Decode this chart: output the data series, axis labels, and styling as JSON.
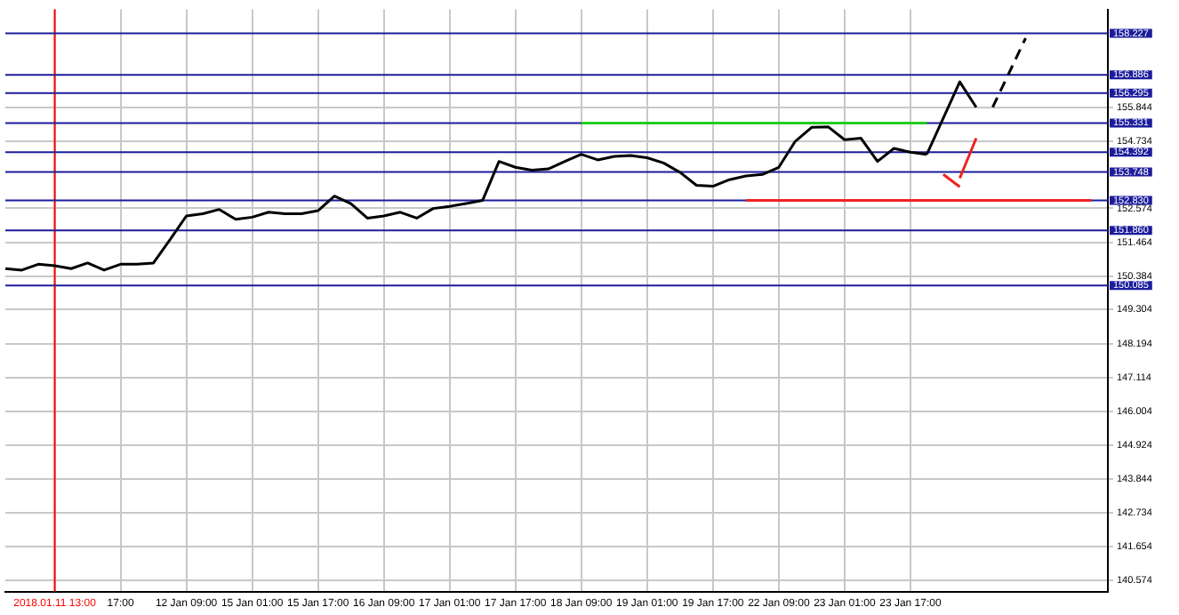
{
  "chart_data": {
    "type": "line",
    "categories": [
      null,
      null,
      null,
      "2018.01.11 13:00",
      null,
      null,
      null,
      "17:00",
      null,
      null,
      null,
      "12 Jan 09:00",
      null,
      null,
      null,
      "15 Jan 01:00",
      null,
      null,
      null,
      "15 Jan 17:00",
      null,
      null,
      null,
      "16 Jan 09:00",
      null,
      null,
      null,
      "17 Jan 01:00",
      null,
      null,
      null,
      "17 Jan 17:00",
      null,
      null,
      null,
      "18 Jan 09:00",
      null,
      null,
      null,
      "19 Jan 01:00",
      null,
      null,
      null,
      "19 Jan 17:00",
      null,
      null,
      null,
      "22 Jan 09:00",
      null,
      null,
      null,
      "23 Jan 01:00",
      null,
      null,
      null,
      "23 Jan 17:00",
      null,
      null,
      null,
      null,
      null,
      null,
      null,
      null,
      null,
      null,
      null,
      null
    ],
    "series": [
      {
        "color": "#000000",
        "values": [
          150.63,
          150.58,
          150.77,
          150.72,
          150.63,
          150.81,
          150.58,
          150.77,
          150.77,
          150.81,
          151.56,
          152.33,
          152.4,
          152.54,
          152.22,
          152.29,
          152.45,
          152.4,
          152.4,
          152.5,
          152.97,
          152.73,
          152.26,
          152.33,
          152.45,
          152.26,
          152.57,
          152.64,
          152.73,
          152.83,
          154.09,
          153.9,
          153.81,
          153.85,
          154.09,
          154.32,
          154.14,
          154.25,
          154.28,
          154.21,
          154.04,
          153.74,
          153.32,
          153.29,
          153.5,
          153.62,
          153.67,
          153.9,
          154.74,
          155.19,
          155.21,
          154.79,
          154.84,
          154.09,
          154.51,
          154.39,
          154.32,
          null,
          null,
          null,
          null,
          null,
          null,
          null,
          null,
          null,
          null,
          null
        ]
      },
      {
        "type": "line",
        "color": "#22cc22",
        "values": [
          null,
          null,
          null,
          null,
          null,
          null,
          null,
          null,
          null,
          null,
          null,
          null,
          null,
          null,
          null,
          null,
          null,
          null,
          null,
          null,
          null,
          null,
          null,
          null,
          null,
          null,
          null,
          null,
          null,
          null,
          null,
          null,
          null,
          null,
          null,
          155.331,
          155.331,
          155.331,
          155.331,
          155.331,
          155.331,
          155.331,
          155.331,
          155.331,
          155.331,
          155.331,
          155.331,
          155.331,
          155.331,
          155.331,
          155.331,
          155.331,
          155.331,
          155.331,
          155.331,
          155.331,
          155.331,
          null,
          null,
          null,
          null,
          null,
          null,
          null,
          null,
          null,
          null,
          null
        ]
      },
      {
        "type": "line",
        "color": "#ee2222",
        "values": [
          null,
          null,
          null,
          null,
          null,
          null,
          null,
          null,
          null,
          null,
          null,
          null,
          null,
          null,
          null,
          null,
          null,
          null,
          null,
          null,
          null,
          null,
          null,
          null,
          null,
          null,
          null,
          null,
          null,
          null,
          null,
          null,
          null,
          null,
          null,
          null,
          null,
          null,
          null,
          null,
          null,
          null,
          null,
          null,
          null,
          152.83,
          152.83,
          152.83,
          152.83,
          152.83,
          152.83,
          152.83,
          152.83,
          152.83,
          152.83,
          152.83,
          152.83,
          152.83,
          152.83,
          152.83,
          152.83,
          152.83,
          152.83,
          152.83,
          152.83,
          152.83,
          152.83,
          null
        ]
      },
      {
        "type": "line",
        "color": "#000000",
        "values": [
          null,
          null,
          null,
          null,
          null,
          null,
          null,
          null,
          null,
          null,
          null,
          null,
          null,
          null,
          null,
          null,
          null,
          null,
          null,
          null,
          null,
          null,
          null,
          null,
          null,
          null,
          null,
          null,
          null,
          null,
          null,
          null,
          null,
          null,
          null,
          null,
          null,
          null,
          null,
          null,
          null,
          null,
          null,
          null,
          null,
          null,
          null,
          null,
          null,
          null,
          null,
          null,
          null,
          null,
          null,
          null,
          154.32,
          null,
          156.66,
          155.84,
          null,
          null,
          null,
          null,
          null,
          null,
          null,
          null
        ]
      },
      {
        "type": "line",
        "color": "#000000",
        "line_style": "dashed",
        "values": [
          null,
          null,
          null,
          null,
          null,
          null,
          null,
          null,
          null,
          null,
          null,
          null,
          null,
          null,
          null,
          null,
          null,
          null,
          null,
          null,
          null,
          null,
          null,
          null,
          null,
          null,
          null,
          null,
          null,
          null,
          null,
          null,
          null,
          null,
          null,
          null,
          null,
          null,
          null,
          null,
          null,
          null,
          null,
          null,
          null,
          null,
          null,
          null,
          null,
          null,
          null,
          null,
          null,
          null,
          null,
          null,
          null,
          null,
          null,
          null,
          155.84,
          null,
          158.07,
          null,
          null,
          null,
          null,
          null
        ]
      },
      {
        "type": "line",
        "color": "#ee2222",
        "values": [
          null,
          null,
          null,
          null,
          null,
          null,
          null,
          null,
          null,
          null,
          null,
          null,
          null,
          null,
          null,
          null,
          null,
          null,
          null,
          null,
          null,
          null,
          null,
          null,
          null,
          null,
          null,
          null,
          null,
          null,
          null,
          null,
          null,
          null,
          null,
          null,
          null,
          null,
          null,
          null,
          null,
          null,
          null,
          null,
          null,
          null,
          null,
          null,
          null,
          null,
          null,
          null,
          null,
          null,
          null,
          null,
          null,
          153.67,
          153.27,
          null,
          null,
          null,
          null,
          null,
          null,
          null,
          null,
          null
        ]
      },
      {
        "type": "line",
        "color": "#ee2222",
        "values": [
          null,
          null,
          null,
          null,
          null,
          null,
          null,
          null,
          null,
          null,
          null,
          null,
          null,
          null,
          null,
          null,
          null,
          null,
          null,
          null,
          null,
          null,
          null,
          null,
          null,
          null,
          null,
          null,
          null,
          null,
          null,
          null,
          null,
          null,
          null,
          null,
          null,
          null,
          null,
          null,
          null,
          null,
          null,
          null,
          null,
          null,
          null,
          null,
          null,
          null,
          null,
          null,
          null,
          null,
          null,
          null,
          null,
          null,
          153.55,
          154.84,
          null,
          null,
          null,
          null,
          null,
          null,
          null,
          null
        ]
      }
    ],
    "ylim": [
      140.2,
      159.0
    ],
    "yticks": [
      155.844,
      154.734,
      152.574,
      151.464,
      150.384,
      149.304,
      148.194,
      147.114,
      146.004,
      144.924,
      143.844,
      142.734,
      141.654,
      140.574
    ],
    "ref_lines": [
      {
        "axis": "x",
        "value": "2018.01.11 13:00",
        "color": "#ff0000"
      },
      {
        "axis": "y",
        "value": 158.227,
        "label": "158.227",
        "color": "#1c1c9c"
      },
      {
        "axis": "y",
        "value": 156.886,
        "label": "156.886",
        "color": "#1c1c9c"
      },
      {
        "axis": "y",
        "value": 156.295,
        "label": "156.295",
        "color": "#1c1c9c"
      },
      {
        "axis": "y",
        "value": 155.331,
        "label": "155.331",
        "color": "#1c1c9c"
      },
      {
        "axis": "y",
        "value": 154.392,
        "label": "154.392",
        "color": "#1c1c9c"
      },
      {
        "axis": "y",
        "value": 153.748,
        "label": "153.748",
        "color": "#1c1c9c"
      },
      {
        "axis": "y",
        "value": 152.83,
        "label": "152.830",
        "color": "#1c1c9c"
      },
      {
        "axis": "y",
        "value": 151.86,
        "label": "151.860",
        "color": "#1c1c9c"
      },
      {
        "axis": "y",
        "value": 150.085,
        "label": "150.085",
        "color": "#1c1c9c"
      }
    ],
    "grid": true,
    "legend": false,
    "marker": "none"
  }
}
